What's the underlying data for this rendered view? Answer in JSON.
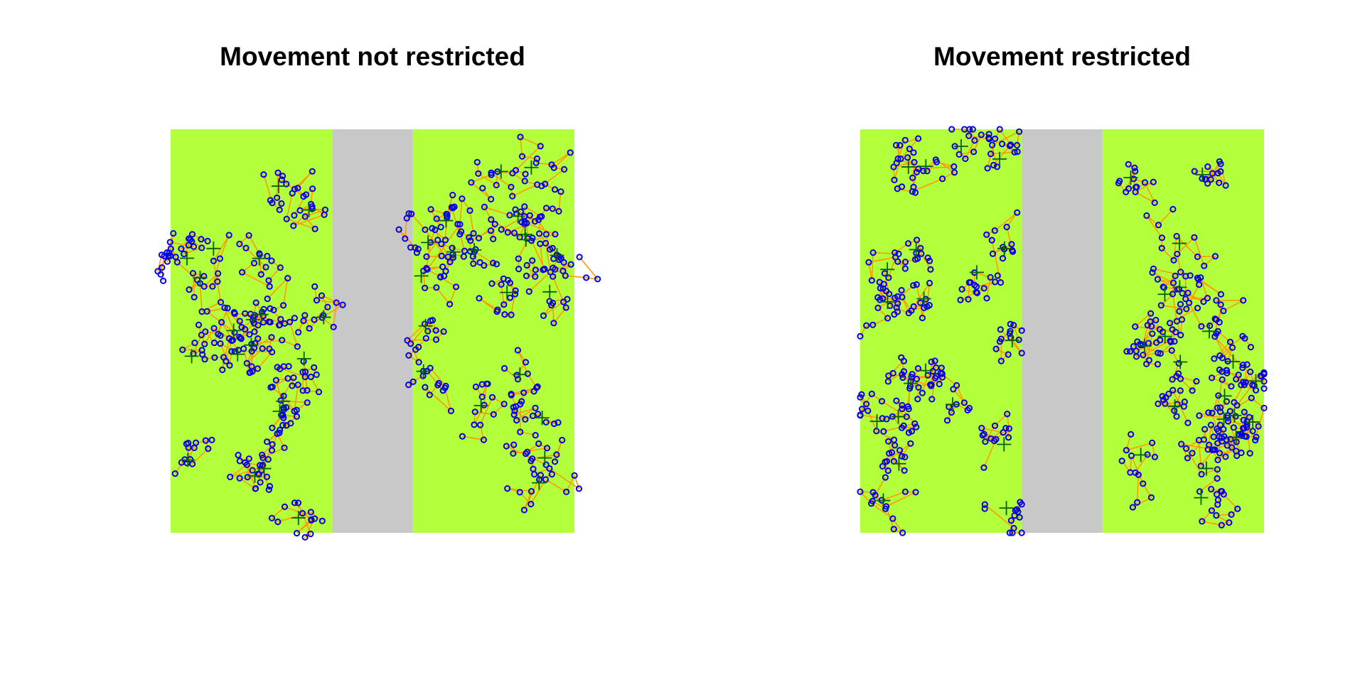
{
  "chart_data": [
    {
      "type": "scatter",
      "title": "Movement not restricted",
      "xlabel": "",
      "ylabel": "",
      "xlim": [
        0,
        1
      ],
      "ylim": [
        0,
        1
      ],
      "grid": false,
      "habitat_color": "#b3ff3b",
      "gap_color": "#c8c8c8",
      "regions": [
        {
          "kind": "habitat",
          "x0": 0.0,
          "x1": 0.4
        },
        {
          "kind": "gap",
          "x0": 0.4,
          "x1": 0.6
        },
        {
          "kind": "habitat",
          "x0": 0.6,
          "x1": 1.0
        }
      ],
      "layers": {
        "paths": {
          "color": "#ff9a00",
          "shape": "line"
        },
        "locations": {
          "color": "#0000ee",
          "shape": "open-circle"
        },
        "centers": {
          "color": "#006400",
          "shape": "plus"
        }
      },
      "generator": {
        "seed": 11,
        "n_individuals": 40,
        "steps": 14,
        "step_sd": 0.028,
        "spread_sd": 0.035,
        "restricted": false
      }
    },
    {
      "type": "scatter",
      "title": "Movement restricted",
      "xlabel": "",
      "ylabel": "",
      "xlim": [
        0,
        1
      ],
      "ylim": [
        0,
        1
      ],
      "grid": false,
      "habitat_color": "#b3ff3b",
      "gap_color": "#c8c8c8",
      "regions": [
        {
          "kind": "habitat",
          "x0": 0.0,
          "x1": 0.4
        },
        {
          "kind": "gap",
          "x0": 0.4,
          "x1": 0.6
        },
        {
          "kind": "habitat",
          "x0": 0.6,
          "x1": 1.0
        }
      ],
      "layers": {
        "paths": {
          "color": "#ff9a00",
          "shape": "line"
        },
        "locations": {
          "color": "#0000ee",
          "shape": "open-circle"
        },
        "centers": {
          "color": "#006400",
          "shape": "plus"
        }
      },
      "generator": {
        "seed": 29,
        "n_individuals": 40,
        "steps": 14,
        "step_sd": 0.028,
        "spread_sd": 0.035,
        "restricted": true
      }
    }
  ]
}
